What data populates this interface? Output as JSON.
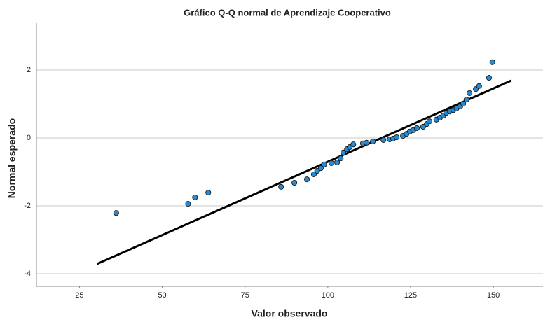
{
  "chart_data": {
    "type": "scatter",
    "title": "Gráfico Q-Q normal de Aprendizaje Cooperativo",
    "x_label": "Valor observado",
    "y_label": "Normal esperado",
    "x": [
      36.1,
      57.8,
      59.9,
      63.9,
      85.9,
      89.9,
      93.7,
      95.8,
      96.8,
      97.9,
      98.9,
      101.1,
      102.8,
      103.9,
      104.7,
      105.8,
      106.6,
      107.7,
      110.6,
      111.7,
      113.6,
      116.8,
      118.7,
      119.7,
      120.8,
      122.7,
      123.8,
      124.8,
      125.8,
      126.9,
      128.8,
      129.9,
      130.7,
      132.8,
      133.9,
      134.9,
      135.8,
      136.8,
      137.9,
      138.9,
      140.0,
      140.9,
      141.9,
      142.8,
      144.7,
      145.7,
      148.7,
      149.7
    ],
    "values": [
      -2.21,
      -1.94,
      -1.75,
      -1.61,
      -1.44,
      -1.32,
      -1.22,
      -1.07,
      -0.97,
      -0.89,
      -0.78,
      -0.74,
      -0.72,
      -0.6,
      -0.43,
      -0.33,
      -0.27,
      -0.19,
      -0.16,
      -0.14,
      -0.1,
      -0.06,
      -0.04,
      -0.02,
      0.02,
      0.06,
      0.12,
      0.19,
      0.23,
      0.29,
      0.33,
      0.41,
      0.49,
      0.54,
      0.6,
      0.66,
      0.74,
      0.78,
      0.82,
      0.87,
      0.93,
      1.01,
      1.13,
      1.32,
      1.44,
      1.53,
      1.77,
      2.23
    ],
    "color": "#2a8ad0",
    "reference_line": {
      "x": [
        30.3,
        155.4
      ],
      "y": [
        -3.71,
        1.69
      ],
      "color": "#000000"
    },
    "xlim": [
      12,
      165
    ],
    "xticks": [
      25,
      50,
      75,
      100,
      125,
      150
    ],
    "ylim": [
      -4.37,
      3.38
    ],
    "yticks": [
      -4,
      -2,
      0,
      2
    ],
    "grid": true
  }
}
